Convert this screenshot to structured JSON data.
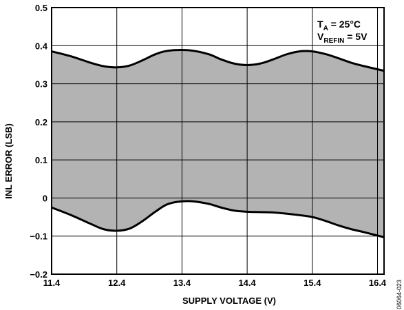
{
  "chart_data": {
    "type": "area",
    "xlabel": "SUPPLY VOLTAGE (V)",
    "ylabel": "INL ERROR (LSB)",
    "xlim": [
      11.4,
      16.5
    ],
    "ylim": [
      -0.2,
      0.5
    ],
    "grid": true,
    "x_ticks": [
      "11.4",
      "12.4",
      "13.4",
      "14.4",
      "15.4",
      "16.4"
    ],
    "y_ticks": [
      "−0.2",
      "−0.1",
      "0",
      "0.1",
      "0.2",
      "0.3",
      "0.4",
      "0.5"
    ],
    "y_tick_values": [
      -0.2,
      -0.1,
      0,
      0.1,
      0.2,
      0.3,
      0.4,
      0.5
    ],
    "x_tick_values": [
      11.4,
      12.4,
      13.4,
      14.4,
      15.4,
      16.4
    ],
    "series": [
      {
        "x": [
          11.4,
          11.7,
          12.0,
          12.2,
          12.4,
          12.6,
          12.8,
          13.0,
          13.2,
          13.5,
          13.8,
          14.0,
          14.2,
          14.4,
          14.6,
          14.8,
          15.0,
          15.2,
          15.4,
          15.6,
          15.8,
          16.0,
          16.2,
          16.5
        ],
        "values": [
          0.385,
          0.372,
          0.355,
          0.346,
          0.343,
          0.348,
          0.362,
          0.378,
          0.387,
          0.388,
          0.378,
          0.364,
          0.353,
          0.349,
          0.353,
          0.364,
          0.377,
          0.385,
          0.385,
          0.378,
          0.367,
          0.355,
          0.346,
          0.334
        ]
      },
      {
        "x": [
          11.4,
          11.7,
          12.0,
          12.2,
          12.4,
          12.6,
          12.8,
          13.0,
          13.2,
          13.5,
          13.8,
          14.0,
          14.2,
          14.4,
          14.6,
          14.8,
          15.0,
          15.2,
          15.4,
          15.6,
          15.8,
          16.0,
          16.2,
          16.5
        ],
        "values": [
          -0.025,
          -0.045,
          -0.068,
          -0.082,
          -0.086,
          -0.08,
          -0.06,
          -0.035,
          -0.015,
          -0.008,
          -0.015,
          -0.025,
          -0.033,
          -0.036,
          -0.037,
          -0.038,
          -0.041,
          -0.045,
          -0.05,
          -0.06,
          -0.072,
          -0.082,
          -0.09,
          -0.103
        ]
      }
    ],
    "annotation": {
      "line1_main": "T",
      "line1_sub": "A",
      "line1_rest": " = 25°C",
      "line2_main": "V",
      "line2_sub": "REFIN",
      "line2_rest": " = 5V"
    },
    "figure_code": "06064-023",
    "colors": {
      "fill": "#b3b3b3",
      "line": "#000000",
      "grid": "#000000"
    }
  }
}
